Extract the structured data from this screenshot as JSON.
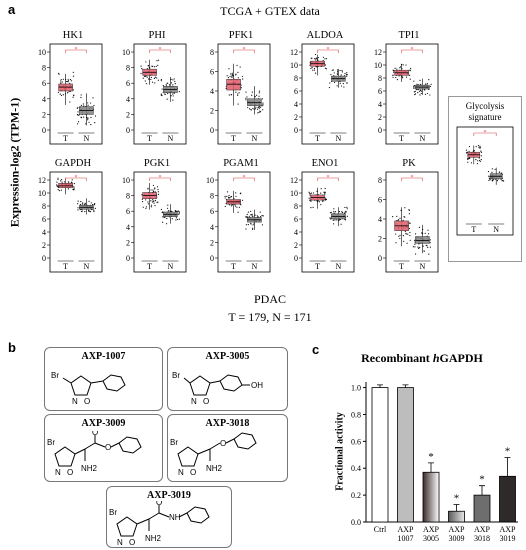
{
  "figure": {
    "panel_a": {
      "letter": "a",
      "title": "TCGA + GTEX data",
      "ylabel": "Expression-log2 (TPM-1)",
      "footer_cancer": "PDAC",
      "footer_counts": "T = 179, N = 171",
      "group_labels": [
        "T",
        "N"
      ]
    },
    "panel_b": {
      "letter": "b",
      "compounds": [
        {
          "name": "AXP-1007",
          "atoms": [
            "Br",
            "N",
            "O"
          ]
        },
        {
          "name": "AXP-3005",
          "atoms": [
            "Br",
            "N",
            "O",
            "OH"
          ]
        },
        {
          "name": "AXP-3009",
          "atoms": [
            "Br",
            "N",
            "O",
            "O",
            "O",
            "NH2"
          ]
        },
        {
          "name": "AXP-3018",
          "atoms": [
            "Br",
            "N",
            "O",
            "O",
            "NH2"
          ]
        },
        {
          "name": "AXP-3019",
          "atoms": [
            "Br",
            "N",
            "O",
            "O",
            "NH",
            "NH2"
          ]
        }
      ]
    },
    "panel_c": {
      "letter": "c"
    }
  },
  "chart_data": [
    {
      "type": "box",
      "title": "HK1",
      "categories": [
        "T",
        "N"
      ],
      "ylim": [
        0,
        10
      ],
      "yticks": [
        0,
        2,
        4,
        6,
        8,
        10
      ],
      "series": [
        {
          "name": "T",
          "q1": 5.0,
          "median": 5.5,
          "q3": 5.9,
          "whisker_low": 3.2,
          "whisker_high": 7.2,
          "color": "#e15d6b"
        },
        {
          "name": "N",
          "q1": 2.0,
          "median": 2.5,
          "q3": 3.0,
          "whisker_low": 0.6,
          "whisker_high": 4.7,
          "color": "#808080"
        }
      ],
      "significance": "*"
    },
    {
      "type": "box",
      "title": "PHI",
      "categories": [
        "T",
        "N"
      ],
      "ylim": [
        0,
        10
      ],
      "yticks": [
        0,
        2,
        4,
        6,
        8,
        10
      ],
      "series": [
        {
          "name": "T",
          "q1": 7.0,
          "median": 7.4,
          "q3": 7.8,
          "whisker_low": 5.8,
          "whisker_high": 9.0,
          "color": "#e15d6b"
        },
        {
          "name": "N",
          "q1": 4.8,
          "median": 5.2,
          "q3": 5.6,
          "whisker_low": 3.6,
          "whisker_high": 6.8,
          "color": "#808080"
        }
      ],
      "significance": "*"
    },
    {
      "type": "box",
      "title": "PFK1",
      "categories": [
        "T",
        "N"
      ],
      "ylim": [
        0,
        8
      ],
      "yticks": [
        0,
        2,
        4,
        6,
        8
      ],
      "series": [
        {
          "name": "T",
          "q1": 4.1,
          "median": 4.7,
          "q3": 5.2,
          "whisker_low": 2.5,
          "whisker_high": 6.8,
          "color": "#e15d6b"
        },
        {
          "name": "N",
          "q1": 2.5,
          "median": 2.8,
          "q3": 3.2,
          "whisker_low": 1.6,
          "whisker_high": 4.5,
          "color": "#808080"
        }
      ],
      "significance": "*"
    },
    {
      "type": "box",
      "title": "ALDOA",
      "categories": [
        "T",
        "N"
      ],
      "ylim": [
        0,
        12
      ],
      "yticks": [
        0,
        2,
        4,
        6,
        8,
        10,
        12
      ],
      "series": [
        {
          "name": "T",
          "q1": 9.8,
          "median": 10.2,
          "q3": 10.6,
          "whisker_low": 8.4,
          "whisker_high": 11.6,
          "color": "#e15d6b"
        },
        {
          "name": "N",
          "q1": 7.5,
          "median": 7.9,
          "q3": 8.3,
          "whisker_low": 6.5,
          "whisker_high": 9.4,
          "color": "#808080"
        }
      ],
      "significance": "*"
    },
    {
      "type": "box",
      "title": "TPI1",
      "categories": [
        "T",
        "N"
      ],
      "ylim": [
        0,
        12
      ],
      "yticks": [
        0,
        2,
        4,
        6,
        8,
        10,
        12
      ],
      "series": [
        {
          "name": "T",
          "q1": 8.4,
          "median": 8.8,
          "q3": 9.2,
          "whisker_low": 7.4,
          "whisker_high": 10.2,
          "color": "#e15d6b"
        },
        {
          "name": "N",
          "q1": 6.3,
          "median": 6.6,
          "q3": 6.9,
          "whisker_low": 5.4,
          "whisker_high": 7.9,
          "color": "#808080"
        }
      ],
      "significance": "*"
    },
    {
      "type": "box",
      "title": "Glycolysis signature",
      "categories": [
        "T",
        "N"
      ],
      "ylim": [
        0,
        10
      ],
      "yticks": [],
      "series": [
        {
          "name": "T",
          "q1": 7.4,
          "median": 7.7,
          "q3": 8.0,
          "whisker_low": 6.6,
          "whisker_high": 8.8,
          "color": "#e15d6b"
        },
        {
          "name": "N",
          "q1": 4.9,
          "median": 5.2,
          "q3": 5.5,
          "whisker_low": 4.2,
          "whisker_high": 6.2,
          "color": "#808080"
        }
      ],
      "significance": "*"
    },
    {
      "type": "box",
      "title": "GAPDH",
      "categories": [
        "T",
        "N"
      ],
      "ylim": [
        0,
        12
      ],
      "yticks": [
        0,
        2,
        4,
        6,
        8,
        10,
        12
      ],
      "series": [
        {
          "name": "T",
          "q1": 10.8,
          "median": 11.1,
          "q3": 11.5,
          "whisker_low": 9.8,
          "whisker_high": 12.3,
          "color": "#e15d6b"
        },
        {
          "name": "N",
          "q1": 7.5,
          "median": 7.8,
          "q3": 8.1,
          "whisker_low": 6.7,
          "whisker_high": 9.2,
          "color": "#808080"
        }
      ],
      "significance": "*"
    },
    {
      "type": "box",
      "title": "PGK1",
      "categories": [
        "T",
        "N"
      ],
      "ylim": [
        0,
        10
      ],
      "yticks": [
        0,
        2,
        4,
        6,
        8,
        10
      ],
      "series": [
        {
          "name": "T",
          "q1": 7.6,
          "median": 8.0,
          "q3": 8.4,
          "whisker_low": 6.2,
          "whisker_high": 9.6,
          "color": "#e15d6b"
        },
        {
          "name": "N",
          "q1": 5.3,
          "median": 5.6,
          "q3": 5.9,
          "whisker_low": 4.4,
          "whisker_high": 6.9,
          "color": "#808080"
        }
      ],
      "significance": "*"
    },
    {
      "type": "box",
      "title": "PGAM1",
      "categories": [
        "T",
        "N"
      ],
      "ylim": [
        0,
        10
      ],
      "yticks": [
        0,
        2,
        4,
        6,
        8,
        10
      ],
      "series": [
        {
          "name": "T",
          "q1": 6.9,
          "median": 7.2,
          "q3": 7.5,
          "whisker_low": 5.8,
          "whisker_high": 8.6,
          "color": "#e15d6b"
        },
        {
          "name": "N",
          "q1": 4.6,
          "median": 4.9,
          "q3": 5.2,
          "whisker_low": 3.6,
          "whisker_high": 6.2,
          "color": "#808080"
        }
      ],
      "significance": "*"
    },
    {
      "type": "box",
      "title": "ENO1",
      "categories": [
        "T",
        "N"
      ],
      "ylim": [
        0,
        12
      ],
      "yticks": [
        0,
        2,
        4,
        6,
        8,
        10,
        12
      ],
      "series": [
        {
          "name": "T",
          "q1": 8.9,
          "median": 9.3,
          "q3": 9.7,
          "whisker_low": 7.6,
          "whisker_high": 10.8,
          "color": "#e15d6b"
        },
        {
          "name": "N",
          "q1": 6.0,
          "median": 6.4,
          "q3": 6.8,
          "whisker_low": 4.9,
          "whisker_high": 7.8,
          "color": "#808080"
        }
      ],
      "significance": "*"
    },
    {
      "type": "box",
      "title": "PK",
      "categories": [
        "T",
        "N"
      ],
      "ylim": [
        0,
        8
      ],
      "yticks": [
        0,
        2,
        4,
        6,
        8
      ],
      "series": [
        {
          "name": "T",
          "q1": 2.8,
          "median": 3.3,
          "q3": 3.8,
          "whisker_low": 1.2,
          "whisker_high": 5.2,
          "color": "#e15d6b"
        },
        {
          "name": "N",
          "q1": 1.5,
          "median": 1.8,
          "q3": 2.2,
          "whisker_low": 0.5,
          "whisker_high": 3.4,
          "color": "#808080"
        }
      ],
      "significance": "*"
    },
    {
      "type": "bar",
      "title": "Recombinant hGAPDH",
      "title_plain": "Recombinant ",
      "title_italic": "h",
      "title_rest": "GAPDH",
      "ylabel": "Fractional activity",
      "categories": [
        "Ctrl",
        "AXP 1007",
        "AXP 3005",
        "AXP 3009",
        "AXP 3018",
        "AXP 3019"
      ],
      "values": [
        1.0,
        1.0,
        0.37,
        0.08,
        0.2,
        0.34
      ],
      "errors": [
        0.02,
        0.02,
        0.07,
        0.05,
        0.07,
        0.14
      ],
      "significant": [
        false,
        false,
        true,
        true,
        true,
        true
      ],
      "ylim": [
        0,
        1.0
      ],
      "yticks": [
        "0.0",
        "0.2",
        "0.4",
        "0.6",
        "0.8",
        "1.0"
      ]
    }
  ]
}
